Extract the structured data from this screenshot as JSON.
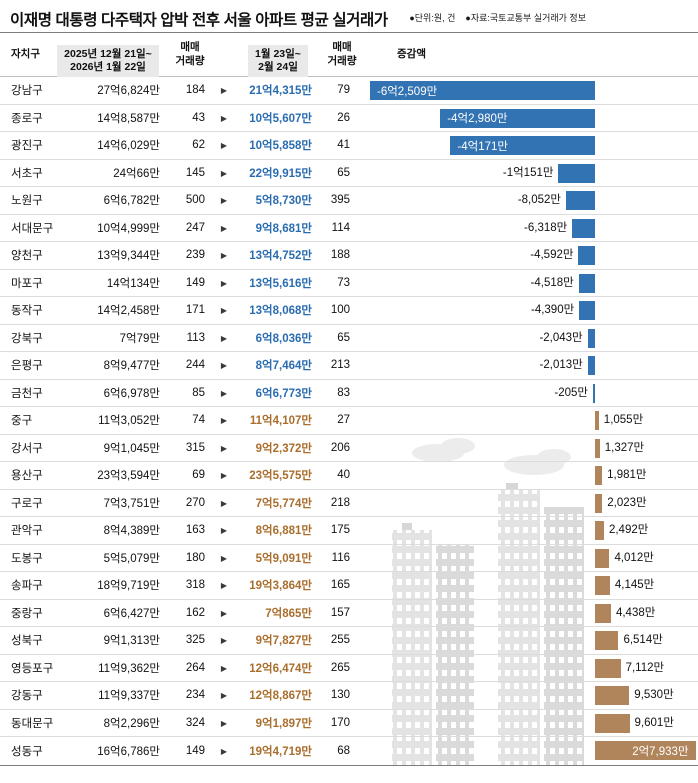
{
  "title": "이재명 대통령 다주택자 압박 전후 서울 아파트 평균 실거래가",
  "meta": {
    "unit": "●단위:원, 건",
    "source": "●자료:국토교통부 실거래가 정보"
  },
  "headers": {
    "district": "자치구",
    "period1": "2025년 12월 21일~\n2026년 1월 22일",
    "volume": "매매\n거래량",
    "period2": "1월 23일~\n2월 24일",
    "change": "증감액"
  },
  "chart_data": {
    "type": "bar",
    "title": "이재명 대통령 다주택자 압박 전후 서울 아파트 평균 실거래가",
    "unit": "만원",
    "orientation": "horizontal-diverging",
    "bar_max_abs": 62509,
    "negative_color": "#3273b4",
    "positive_color": "#b0855c",
    "negative_text_color": "#2a6cb0",
    "positive_text_color": "#a96e2c",
    "rows": [
      {
        "district": "강남구",
        "price_before": "27억6,824만",
        "price_before_val": 276824,
        "volume_before": 184,
        "price_after": "21억4,315만",
        "price_after_val": 214315,
        "volume_after": 79,
        "change_label": "-6억2,509만",
        "change_value": -62509
      },
      {
        "district": "종로구",
        "price_before": "14억8,587만",
        "price_before_val": 148587,
        "volume_before": 43,
        "price_after": "10억5,607만",
        "price_after_val": 105607,
        "volume_after": 26,
        "change_label": "-4억2,980만",
        "change_value": -42980
      },
      {
        "district": "광진구",
        "price_before": "14억6,029만",
        "price_before_val": 146029,
        "volume_before": 62,
        "price_after": "10억5,858만",
        "price_after_val": 105858,
        "volume_after": 41,
        "change_label": "-4억171만",
        "change_value": -40171
      },
      {
        "district": "서초구",
        "price_before": "24억66만",
        "price_before_val": 240066,
        "volume_before": 145,
        "price_after": "22억9,915만",
        "price_after_val": 229915,
        "volume_after": 65,
        "change_label": "-1억151만",
        "change_value": -10151
      },
      {
        "district": "노원구",
        "price_before": "6억6,782만",
        "price_before_val": 66782,
        "volume_before": 500,
        "price_after": "5억8,730만",
        "price_after_val": 58730,
        "volume_after": 395,
        "change_label": "-8,052만",
        "change_value": -8052
      },
      {
        "district": "서대문구",
        "price_before": "10억4,999만",
        "price_before_val": 104999,
        "volume_before": 247,
        "price_after": "9억8,681만",
        "price_after_val": 98681,
        "volume_after": 114,
        "change_label": "-6,318만",
        "change_value": -6318
      },
      {
        "district": "양천구",
        "price_before": "13억9,344만",
        "price_before_val": 139344,
        "volume_before": 239,
        "price_after": "13억4,752만",
        "price_after_val": 134752,
        "volume_after": 188,
        "change_label": "-4,592만",
        "change_value": -4592
      },
      {
        "district": "마포구",
        "price_before": "14억134만",
        "price_before_val": 140134,
        "volume_before": 149,
        "price_after": "13억5,616만",
        "price_after_val": 135616,
        "volume_after": 73,
        "change_label": "-4,518만",
        "change_value": -4518
      },
      {
        "district": "동작구",
        "price_before": "14억2,458만",
        "price_before_val": 142458,
        "volume_before": 171,
        "price_after": "13억8,068만",
        "price_after_val": 138068,
        "volume_after": 100,
        "change_label": "-4,390만",
        "change_value": -4390
      },
      {
        "district": "강북구",
        "price_before": "7억79만",
        "price_before_val": 70079,
        "volume_before": 113,
        "price_after": "6억8,036만",
        "price_after_val": 68036,
        "volume_after": 65,
        "change_label": "-2,043만",
        "change_value": -2043
      },
      {
        "district": "은평구",
        "price_before": "8억9,477만",
        "price_before_val": 89477,
        "volume_before": 244,
        "price_after": "8억7,464만",
        "price_after_val": 87464,
        "volume_after": 213,
        "change_label": "-2,013만",
        "change_value": -2013
      },
      {
        "district": "금천구",
        "price_before": "6억6,978만",
        "price_before_val": 66978,
        "volume_before": 85,
        "price_after": "6억6,773만",
        "price_after_val": 66773,
        "volume_after": 83,
        "change_label": "-205만",
        "change_value": -205
      },
      {
        "district": "중구",
        "price_before": "11억3,052만",
        "price_before_val": 113052,
        "volume_before": 74,
        "price_after": "11억4,107만",
        "price_after_val": 114107,
        "volume_after": 27,
        "change_label": "1,055만",
        "change_value": 1055
      },
      {
        "district": "강서구",
        "price_before": "9억1,045만",
        "price_before_val": 91045,
        "volume_before": 315,
        "price_after": "9억2,372만",
        "price_after_val": 92372,
        "volume_after": 206,
        "change_label": "1,327만",
        "change_value": 1327
      },
      {
        "district": "용산구",
        "price_before": "23억3,594만",
        "price_before_val": 233594,
        "volume_before": 69,
        "price_after": "23억5,575만",
        "price_after_val": 235575,
        "volume_after": 40,
        "change_label": "1,981만",
        "change_value": 1981
      },
      {
        "district": "구로구",
        "price_before": "7억3,751만",
        "price_before_val": 73751,
        "volume_before": 270,
        "price_after": "7억5,774만",
        "price_after_val": 75774,
        "volume_after": 218,
        "change_label": "2,023만",
        "change_value": 2023
      },
      {
        "district": "관악구",
        "price_before": "8억4,389만",
        "price_before_val": 84389,
        "volume_before": 163,
        "price_after": "8억6,881만",
        "price_after_val": 86881,
        "volume_after": 175,
        "change_label": "2,492만",
        "change_value": 2492
      },
      {
        "district": "도봉구",
        "price_before": "5억5,079만",
        "price_before_val": 55079,
        "volume_before": 180,
        "price_after": "5억9,091만",
        "price_after_val": 59091,
        "volume_after": 116,
        "change_label": "4,012만",
        "change_value": 4012
      },
      {
        "district": "송파구",
        "price_before": "18억9,719만",
        "price_before_val": 189719,
        "volume_before": 318,
        "price_after": "19억3,864만",
        "price_after_val": 193864,
        "volume_after": 165,
        "change_label": "4,145만",
        "change_value": 4145
      },
      {
        "district": "중랑구",
        "price_before": "6억6,427만",
        "price_before_val": 66427,
        "volume_before": 162,
        "price_after": "7억865만",
        "price_after_val": 70865,
        "volume_after": 157,
        "change_label": "4,438만",
        "change_value": 4438
      },
      {
        "district": "성북구",
        "price_before": "9억1,313만",
        "price_before_val": 91313,
        "volume_before": 325,
        "price_after": "9억7,827만",
        "price_after_val": 97827,
        "volume_after": 255,
        "change_label": "6,514만",
        "change_value": 6514
      },
      {
        "district": "영등포구",
        "price_before": "11억9,362만",
        "price_before_val": 119362,
        "volume_before": 264,
        "price_after": "12억6,474만",
        "price_after_val": 126474,
        "volume_after": 265,
        "change_label": "7,112만",
        "change_value": 7112
      },
      {
        "district": "강동구",
        "price_before": "11억9,337만",
        "price_before_val": 119337,
        "volume_before": 234,
        "price_after": "12억8,867만",
        "price_after_val": 128867,
        "volume_after": 130,
        "change_label": "9,530만",
        "change_value": 9530
      },
      {
        "district": "동대문구",
        "price_before": "8억2,296만",
        "price_before_val": 82296,
        "volume_before": 324,
        "price_after": "9억1,897만",
        "price_after_val": 91897,
        "volume_after": 170,
        "change_label": "9,601만",
        "change_value": 9601
      },
      {
        "district": "성동구",
        "price_before": "16억6,786만",
        "price_before_val": 166786,
        "volume_before": 149,
        "price_after": "19억4,719만",
        "price_after_val": 194719,
        "volume_after": 68,
        "change_label": "2억7,933만",
        "change_value": 27933
      }
    ]
  }
}
